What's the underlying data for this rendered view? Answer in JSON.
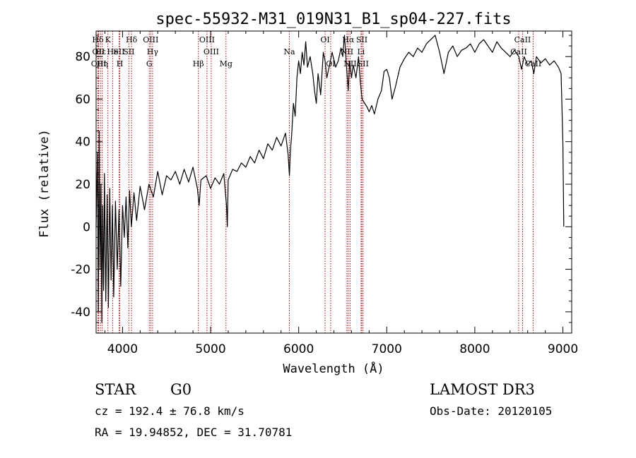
{
  "chart_data": {
    "type": "line",
    "title": "spec-55932-M31_019N31_B1_sp04-227.fits",
    "xlabel": "Wavelength (Å)",
    "ylabel": "Flux (relative)",
    "xlim": [
      3700,
      9100
    ],
    "ylim": [
      -50,
      92
    ],
    "x_ticks": [
      4000,
      5000,
      6000,
      7000,
      8000,
      9000
    ],
    "x_tick_labels": [
      "4000",
      "5000",
      "6000",
      "7000",
      "8000",
      "9000"
    ],
    "y_ticks": [
      -40,
      -20,
      0,
      20,
      40,
      60,
      80
    ],
    "y_tick_labels": [
      "-40",
      "-20",
      "0",
      "20",
      "40",
      "60",
      "80"
    ],
    "series": [
      {
        "name": "flux",
        "color": "#000000",
        "points": [
          [
            3700,
            0
          ],
          [
            3715,
            35
          ],
          [
            3725,
            -40
          ],
          [
            3735,
            45
          ],
          [
            3745,
            -20
          ],
          [
            3755,
            20
          ],
          [
            3765,
            -45
          ],
          [
            3775,
            10
          ],
          [
            3785,
            -30
          ],
          [
            3795,
            25
          ],
          [
            3810,
            -35
          ],
          [
            3825,
            15
          ],
          [
            3840,
            -38
          ],
          [
            3855,
            18
          ],
          [
            3870,
            -25
          ],
          [
            3885,
            10
          ],
          [
            3900,
            -33
          ],
          [
            3920,
            12
          ],
          [
            3940,
            -20
          ],
          [
            3960,
            8
          ],
          [
            3980,
            -28
          ],
          [
            4000,
            10
          ],
          [
            4020,
            -5
          ],
          [
            4040,
            14
          ],
          [
            4060,
            -10
          ],
          [
            4080,
            17
          ],
          [
            4100,
            0
          ],
          [
            4130,
            16
          ],
          [
            4160,
            3
          ],
          [
            4200,
            19
          ],
          [
            4250,
            8
          ],
          [
            4300,
            20
          ],
          [
            4350,
            14
          ],
          [
            4400,
            26
          ],
          [
            4450,
            15
          ],
          [
            4500,
            24
          ],
          [
            4550,
            22
          ],
          [
            4600,
            26
          ],
          [
            4650,
            20
          ],
          [
            4700,
            27
          ],
          [
            4750,
            21
          ],
          [
            4800,
            28
          ],
          [
            4850,
            18
          ],
          [
            4870,
            10
          ],
          [
            4890,
            22
          ],
          [
            4950,
            24
          ],
          [
            5000,
            18
          ],
          [
            5050,
            23
          ],
          [
            5100,
            20
          ],
          [
            5150,
            25
          ],
          [
            5180,
            10
          ],
          [
            5190,
            0
          ],
          [
            5200,
            22
          ],
          [
            5250,
            27
          ],
          [
            5300,
            26
          ],
          [
            5350,
            30
          ],
          [
            5400,
            28
          ],
          [
            5450,
            33
          ],
          [
            5500,
            30
          ],
          [
            5550,
            36
          ],
          [
            5600,
            32
          ],
          [
            5650,
            39
          ],
          [
            5700,
            36
          ],
          [
            5750,
            42
          ],
          [
            5800,
            38
          ],
          [
            5850,
            44
          ],
          [
            5880,
            34
          ],
          [
            5895,
            24
          ],
          [
            5905,
            35
          ],
          [
            5920,
            43
          ],
          [
            5940,
            58
          ],
          [
            5960,
            52
          ],
          [
            5980,
            70
          ],
          [
            6000,
            78
          ],
          [
            6020,
            72
          ],
          [
            6040,
            82
          ],
          [
            6060,
            76
          ],
          [
            6080,
            87
          ],
          [
            6100,
            75
          ],
          [
            6130,
            80
          ],
          [
            6160,
            72
          ],
          [
            6180,
            64
          ],
          [
            6200,
            58
          ],
          [
            6220,
            72
          ],
          [
            6250,
            62
          ],
          [
            6280,
            82
          ],
          [
            6300,
            78
          ],
          [
            6320,
            70
          ],
          [
            6350,
            76
          ],
          [
            6380,
            82
          ],
          [
            6420,
            75
          ],
          [
            6450,
            78
          ],
          [
            6480,
            84
          ],
          [
            6500,
            80
          ],
          [
            6520,
            90
          ],
          [
            6545,
            74
          ],
          [
            6563,
            64
          ],
          [
            6580,
            78
          ],
          [
            6600,
            70
          ],
          [
            6620,
            76
          ],
          [
            6650,
            70
          ],
          [
            6680,
            80
          ],
          [
            6700,
            68
          ],
          [
            6720,
            60
          ],
          [
            6750,
            58
          ],
          [
            6780,
            56
          ],
          [
            6800,
            54
          ],
          [
            6830,
            57
          ],
          [
            6860,
            53
          ],
          [
            6900,
            60
          ],
          [
            6940,
            64
          ],
          [
            6970,
            73
          ],
          [
            7000,
            74
          ],
          [
            7030,
            70
          ],
          [
            7060,
            60
          ],
          [
            7100,
            66
          ],
          [
            7150,
            75
          ],
          [
            7200,
            79
          ],
          [
            7250,
            82
          ],
          [
            7300,
            80
          ],
          [
            7350,
            84
          ],
          [
            7400,
            82
          ],
          [
            7450,
            86
          ],
          [
            7500,
            88
          ],
          [
            7550,
            90
          ],
          [
            7600,
            82
          ],
          [
            7650,
            72
          ],
          [
            7700,
            82
          ],
          [
            7750,
            85
          ],
          [
            7800,
            80
          ],
          [
            7850,
            83
          ],
          [
            7900,
            84
          ],
          [
            7950,
            86
          ],
          [
            8000,
            82
          ],
          [
            8050,
            86
          ],
          [
            8100,
            88
          ],
          [
            8150,
            85
          ],
          [
            8200,
            82
          ],
          [
            8250,
            87
          ],
          [
            8300,
            84
          ],
          [
            8350,
            82
          ],
          [
            8400,
            80
          ],
          [
            8450,
            83
          ],
          [
            8500,
            80
          ],
          [
            8530,
            74
          ],
          [
            8560,
            80
          ],
          [
            8600,
            76
          ],
          [
            8640,
            78
          ],
          [
            8670,
            72
          ],
          [
            8700,
            80
          ],
          [
            8750,
            77
          ],
          [
            8800,
            79
          ],
          [
            8850,
            76
          ],
          [
            8900,
            78
          ],
          [
            8950,
            75
          ],
          [
            8980,
            72
          ],
          [
            9000,
            40
          ],
          [
            9010,
            0
          ]
        ]
      }
    ],
    "line_markers": [
      {
        "label": "Hδ",
        "x": 3720,
        "row": 0
      },
      {
        "label": "OII",
        "x": 3727,
        "row": 1
      },
      {
        "label": "OIII",
        "x": 3730,
        "row": 2
      },
      {
        "label": "Hε",
        "x": 3750,
        "row": 1
      },
      {
        "label": "Hη",
        "x": 3770,
        "row": 2
      },
      {
        "label": "K",
        "x": 3834,
        "row": 0
      },
      {
        "label": "He",
        "x": 3889,
        "row": 1
      },
      {
        "label": "SII",
        "x": 3960,
        "row": 1
      },
      {
        "label": "H",
        "x": 3969,
        "row": 2
      },
      {
        "label": "Hδ",
        "x": 4102,
        "row": 0
      },
      {
        "label": "SII",
        "x": 4072,
        "row": 1
      },
      {
        "label": "OIII",
        "x": 4320,
        "row": 0
      },
      {
        "label": "Hγ",
        "x": 4341,
        "row": 1
      },
      {
        "label": "G",
        "x": 4304,
        "row": 2
      },
      {
        "label": "Hβ",
        "x": 4861,
        "row": 2
      },
      {
        "label": "OIII",
        "x": 4959,
        "row": 0
      },
      {
        "label": "OIII",
        "x": 5007,
        "row": 1
      },
      {
        "label": "Mg",
        "x": 5175,
        "row": 2
      },
      {
        "label": "Na",
        "x": 5894,
        "row": 1
      },
      {
        "label": "OI",
        "x": 6300,
        "row": 0
      },
      {
        "label": "OI",
        "x": 6363,
        "row": 2
      },
      {
        "label": "Hα",
        "x": 6563,
        "row": 0
      },
      {
        "label": "NII",
        "x": 6548,
        "row": 1
      },
      {
        "label": "NII",
        "x": 6584,
        "row": 2
      },
      {
        "label": "SII",
        "x": 6717,
        "row": 0
      },
      {
        "label": "Li",
        "x": 6708,
        "row": 1
      },
      {
        "label": "SII",
        "x": 6731,
        "row": 2
      },
      {
        "label": "CaII",
        "x": 8542,
        "row": 0
      },
      {
        "label": "CaII",
        "x": 8498,
        "row": 1
      },
      {
        "label": "CaII",
        "x": 8662,
        "row": 2
      }
    ],
    "marker_color": "#cc0000"
  },
  "info": {
    "class_label": "STAR",
    "subclass": "G0",
    "survey": "LAMOST DR3",
    "redshift": "cz = 192.4 ± 76.8 km/s",
    "obs_date": "Obs-Date: 20120105",
    "coords": "RA =  19.94852, DEC =  31.70781"
  }
}
